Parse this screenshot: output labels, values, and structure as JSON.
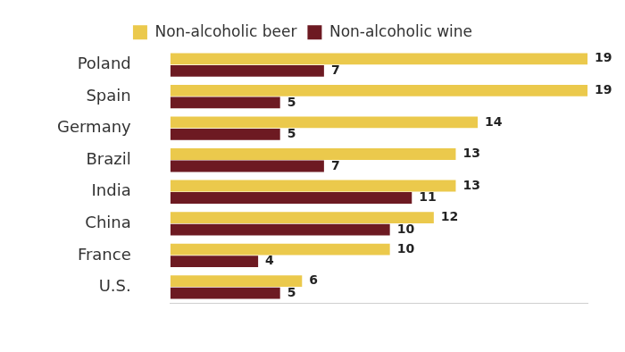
{
  "chart_data": {
    "type": "bar",
    "orientation": "horizontal",
    "categories": [
      "Poland",
      "Spain",
      "Germany",
      "Brazil",
      "India",
      "China",
      "France",
      "U.S."
    ],
    "series": [
      {
        "name": "Non-alcoholic beer",
        "color": "#ebc94c",
        "values": [
          19,
          19,
          14,
          13,
          13,
          12,
          10,
          6
        ]
      },
      {
        "name": "Non-alcoholic wine",
        "color": "#6d1a22",
        "values": [
          7,
          5,
          5,
          7,
          11,
          10,
          4,
          5
        ]
      }
    ],
    "xlim": [
      0,
      19
    ],
    "grid": false,
    "legend": "top",
    "data_labels": true,
    "tick_labels": "y"
  }
}
